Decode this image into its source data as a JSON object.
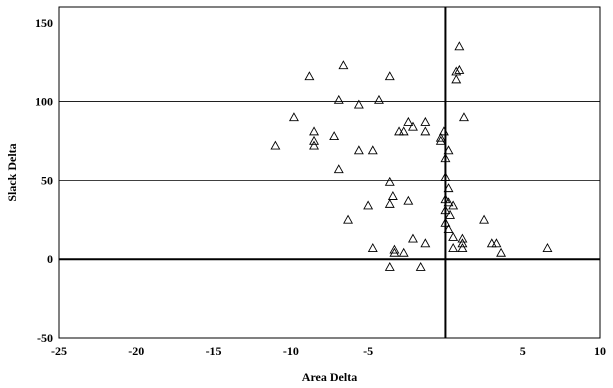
{
  "chart_data": {
    "type": "scatter",
    "xlabel": "Area Delta",
    "ylabel": "Slack Delta",
    "xlim": [
      -25,
      10
    ],
    "ylim": [
      -50,
      160
    ],
    "x_ticks": [
      -25,
      -20,
      -15,
      -10,
      -5,
      0,
      5,
      10
    ],
    "x_tick_labels": [
      "-25",
      "-20",
      "-15",
      "-10",
      "-5",
      "",
      "5",
      "10"
    ],
    "y_ticks": [
      -50,
      0,
      50,
      100,
      150
    ],
    "y_tick_labels": [
      "-50",
      "0",
      "50",
      "100",
      "150"
    ],
    "horizontal_gridlines": [
      50,
      100
    ],
    "reference_lines": {
      "x": 0,
      "y": 0
    },
    "marker": "triangle-open",
    "series": [
      {
        "points": [
          [
            -11.0,
            72
          ],
          [
            -9.8,
            90
          ],
          [
            -8.8,
            116
          ],
          [
            -8.5,
            81
          ],
          [
            -8.5,
            75
          ],
          [
            -8.5,
            72
          ],
          [
            -7.2,
            78
          ],
          [
            -6.9,
            101
          ],
          [
            -6.6,
            123
          ],
          [
            -6.9,
            57
          ],
          [
            -6.3,
            25
          ],
          [
            -5.6,
            98
          ],
          [
            -5.6,
            69
          ],
          [
            -5.0,
            34
          ],
          [
            -4.7,
            69
          ],
          [
            -4.7,
            7
          ],
          [
            -4.3,
            101
          ],
          [
            -3.6,
            116
          ],
          [
            -3.6,
            49
          ],
          [
            -3.4,
            40
          ],
          [
            -3.6,
            35
          ],
          [
            -3.6,
            -5
          ],
          [
            -3.3,
            6
          ],
          [
            -3.3,
            4
          ],
          [
            -3.0,
            81
          ],
          [
            -2.7,
            81
          ],
          [
            -2.4,
            87
          ],
          [
            -2.4,
            37
          ],
          [
            -2.1,
            84
          ],
          [
            -2.1,
            13
          ],
          [
            -2.7,
            4
          ],
          [
            -1.6,
            -5
          ],
          [
            -1.3,
            87
          ],
          [
            -1.3,
            81
          ],
          [
            -1.3,
            10
          ],
          [
            -0.3,
            77
          ],
          [
            -0.3,
            75
          ],
          [
            -0.1,
            81
          ],
          [
            0.0,
            64
          ],
          [
            0.0,
            52
          ],
          [
            0.0,
            38
          ],
          [
            0.0,
            31
          ],
          [
            0.0,
            23
          ],
          [
            0.2,
            69
          ],
          [
            0.2,
            45
          ],
          [
            0.2,
            36
          ],
          [
            0.3,
            28
          ],
          [
            0.2,
            19
          ],
          [
            0.5,
            34
          ],
          [
            0.5,
            14
          ],
          [
            0.7,
            119
          ],
          [
            0.7,
            114
          ],
          [
            0.5,
            7
          ],
          [
            0.9,
            135
          ],
          [
            0.9,
            120
          ],
          [
            1.2,
            90
          ],
          [
            1.1,
            13
          ],
          [
            1.1,
            10
          ],
          [
            1.1,
            7
          ],
          [
            2.5,
            25
          ],
          [
            3.0,
            10
          ],
          [
            3.3,
            10
          ],
          [
            3.6,
            4
          ],
          [
            6.6,
            7
          ]
        ]
      }
    ]
  }
}
